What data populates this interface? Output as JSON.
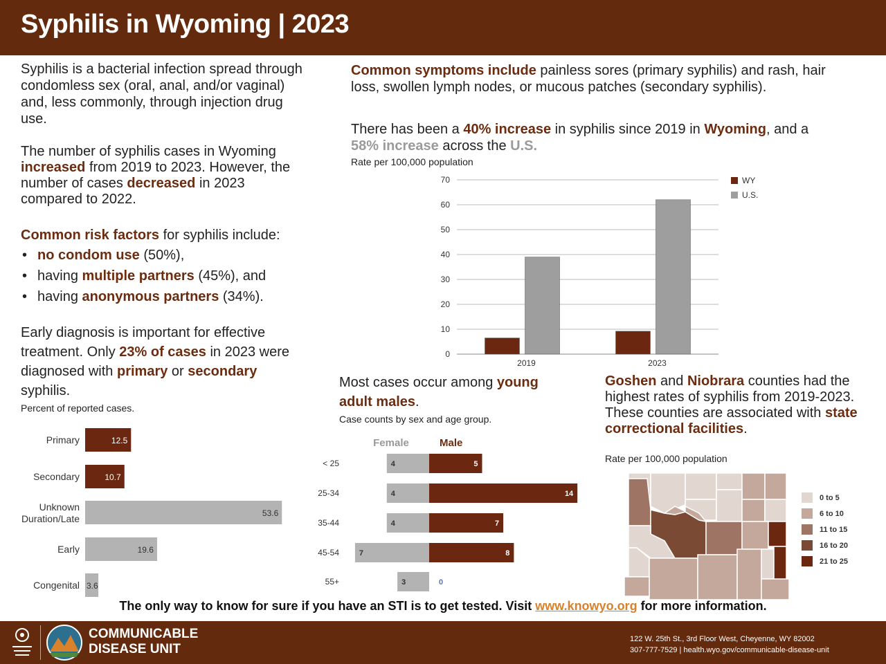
{
  "header": {
    "title": "Syphilis in Wyoming | 2023"
  },
  "intro": {
    "p1": "Syphilis is a bacterial infection spread through condomless sex (oral, anal, and/or vaginal) and, less commonly, through injection drug use.",
    "p2_a": "The number of syphilis cases in Wyoming ",
    "p2_b": "increased",
    "p2_c": " from 2019 to 2023. However, the number of cases ",
    "p2_d": "decreased",
    "p2_e": " in 2023 compared to 2022."
  },
  "risks": {
    "heading_a": "Common risk factors",
    "heading_b": " for syphilis include:",
    "items": [
      {
        "pre": "",
        "bold": "no condom use",
        "post": " (50%),"
      },
      {
        "pre": "having ",
        "bold": "multiple partners",
        "post": " (45%), and"
      },
      {
        "pre": "having ",
        "bold": "anonymous partners",
        "post": " (34%)."
      }
    ]
  },
  "diagnosis": {
    "a": "Early diagnosis is important for effective treatment. Only ",
    "b": "23% of cases",
    "c": " in 2023 were diagnosed with ",
    "d": "primary",
    "e": " or ",
    "f": "secondary",
    "g": " syphilis.",
    "subtitle": "Percent of reported cases."
  },
  "symptoms": {
    "a": "Common symptoms include",
    "b": " painless sores (primary syphilis) and rash, hair loss, swollen lymph nodes, or mucous patches (secondary syphilis)."
  },
  "increase": {
    "a": "There has been a ",
    "b": "40% increase",
    "c": " in syphilis since 2019 in ",
    "d": "Wyoming",
    "e": ", and a",
    "f": "58% increase",
    "g": " across the ",
    "h": "U.S.",
    "subtitle": "Rate per 100,000 population"
  },
  "young": {
    "a": "Most cases occur among ",
    "b": "young adult males",
    "c": ".",
    "subtitle": "Case counts by sex and age group."
  },
  "counties": {
    "a": "Goshen",
    "b": " and ",
    "c": "Niobrara",
    "d": " counties had the highest rates of syphilis from 2019-2023. These counties are associated with ",
    "e": "state correctional facilities",
    "f": ".",
    "subtitle": "Rate per 100,000 population",
    "legend": [
      "0 to 5",
      "6 to 10",
      "11 to 15",
      "16 to 20",
      "21 to 25"
    ],
    "legend_colors": [
      "#e2d6d0",
      "#c4a89b",
      "#9e7465",
      "#7b4a35",
      "#6b2710"
    ]
  },
  "chart_data": [
    {
      "type": "bar",
      "orientation": "vertical",
      "categories": [
        "2019",
        "2023"
      ],
      "series": [
        {
          "name": "WY",
          "values": [
            6.5,
            9.2
          ],
          "color": "#6b2710"
        },
        {
          "name": "U.S.",
          "values": [
            39,
            62
          ],
          "color": "#9e9e9e"
        }
      ],
      "ylim": [
        0,
        70
      ],
      "yticks": [
        "0",
        "10",
        "20",
        "30",
        "40",
        "50",
        "60",
        "70"
      ],
      "legend_position": "top-right",
      "grid": true
    },
    {
      "type": "bar",
      "orientation": "horizontal",
      "categories": [
        "Primary",
        "Secondary",
        "Unknown Duration/Late",
        "Early",
        "Congenital"
      ],
      "values": [
        12.5,
        10.7,
        53.6,
        19.6,
        3.6
      ],
      "value_labels": [
        "12.5",
        "10.7",
        "53.6",
        "19.6",
        "3.6"
      ],
      "colors": [
        "#6b2710",
        "#6b2710",
        "#b3b3b3",
        "#b3b3b3",
        "#b3b3b3"
      ],
      "xlim": [
        0,
        56
      ]
    },
    {
      "type": "bar",
      "orientation": "horizontal",
      "subtype": "population-pyramid",
      "categories": [
        "< 25",
        "25-34",
        "35-44",
        "45-54",
        "55+"
      ],
      "series": [
        {
          "name": "Female",
          "values": [
            4,
            4,
            4,
            7,
            3
          ],
          "color": "#b3b3b3"
        },
        {
          "name": "Male",
          "values": [
            5,
            14,
            7,
            8,
            0
          ],
          "color": "#6b2710"
        }
      ],
      "value_labels_female": [
        "4",
        "4",
        "4",
        "7",
        "3"
      ],
      "value_labels_male": [
        "5",
        "14",
        "7",
        "8",
        "0"
      ]
    }
  ],
  "cta": {
    "a": "The only way to know for sure if you have an STI is to get tested. Visit ",
    "link": "www.knowyo.org",
    "b": " for more information."
  },
  "footer": {
    "unit_line1": "COMMUNICABLE",
    "unit_line2": "DISEASE UNIT",
    "address": "122 W. 25th St., 3rd Floor West, Cheyenne, WY 82002",
    "contact": "307-777-7529 | health.wyo.gov/communicable-disease-unit"
  }
}
